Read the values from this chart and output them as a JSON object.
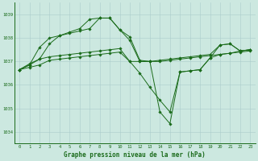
{
  "title": "Graphe pression niveau de la mer (hPa)",
  "bg_color": "#cce8e0",
  "grid_color": "#aacccc",
  "line_color": "#1a6b1a",
  "marker": "D",
  "marker_size": 1.8,
  "linewidth": 0.7,
  "xlim": [
    -0.5,
    23.5
  ],
  "ylim": [
    1033.5,
    1039.5
  ],
  "yticks": [
    1034,
    1035,
    1036,
    1037,
    1038,
    1039
  ],
  "xticks": [
    0,
    1,
    2,
    3,
    4,
    5,
    6,
    7,
    8,
    9,
    10,
    11,
    12,
    13,
    14,
    15,
    16,
    17,
    18,
    19,
    20,
    21,
    22,
    23
  ],
  "tick_fontsize": 4.0,
  "xlabel_fontsize": 5.5,
  "series": [
    [
      1036.65,
      1036.75,
      1036.85,
      1037.05,
      1037.1,
      1037.15,
      1037.2,
      1037.25,
      1037.3,
      1037.35,
      1037.4,
      1037.0,
      1037.0,
      1037.0,
      1037.0,
      1037.05,
      1037.1,
      1037.15,
      1037.2,
      1037.25,
      1037.3,
      1037.35,
      1037.4,
      1037.45
    ],
    [
      1036.65,
      1036.85,
      1037.6,
      1038.0,
      1038.1,
      1038.2,
      1038.3,
      1038.4,
      1038.85,
      1038.85,
      1038.35,
      1037.9,
      1037.0,
      1037.0,
      1037.05,
      1037.1,
      1037.15,
      1037.2,
      1037.25,
      1037.3,
      1037.7,
      1037.75,
      1037.45,
      1037.5
    ],
    [
      1036.65,
      1036.85,
      1037.1,
      1037.2,
      1037.25,
      1037.3,
      1037.35,
      1037.4,
      1037.45,
      1037.5,
      1037.55,
      1037.0,
      1036.5,
      1035.9,
      1035.35,
      1034.85,
      1036.55,
      1036.6,
      1036.65,
      1037.15,
      1037.3,
      1037.35,
      1037.45,
      1037.5
    ],
    [
      1036.65,
      1036.9,
      1037.1,
      1037.75,
      1038.1,
      1038.25,
      1038.4,
      1038.8,
      1038.85,
      1038.85,
      1038.35,
      1038.05,
      1037.05,
      1037.0,
      1034.85,
      1034.35,
      1036.55,
      1036.6,
      1036.65,
      1037.15,
      1037.7,
      1037.75,
      1037.45,
      1037.5
    ]
  ]
}
